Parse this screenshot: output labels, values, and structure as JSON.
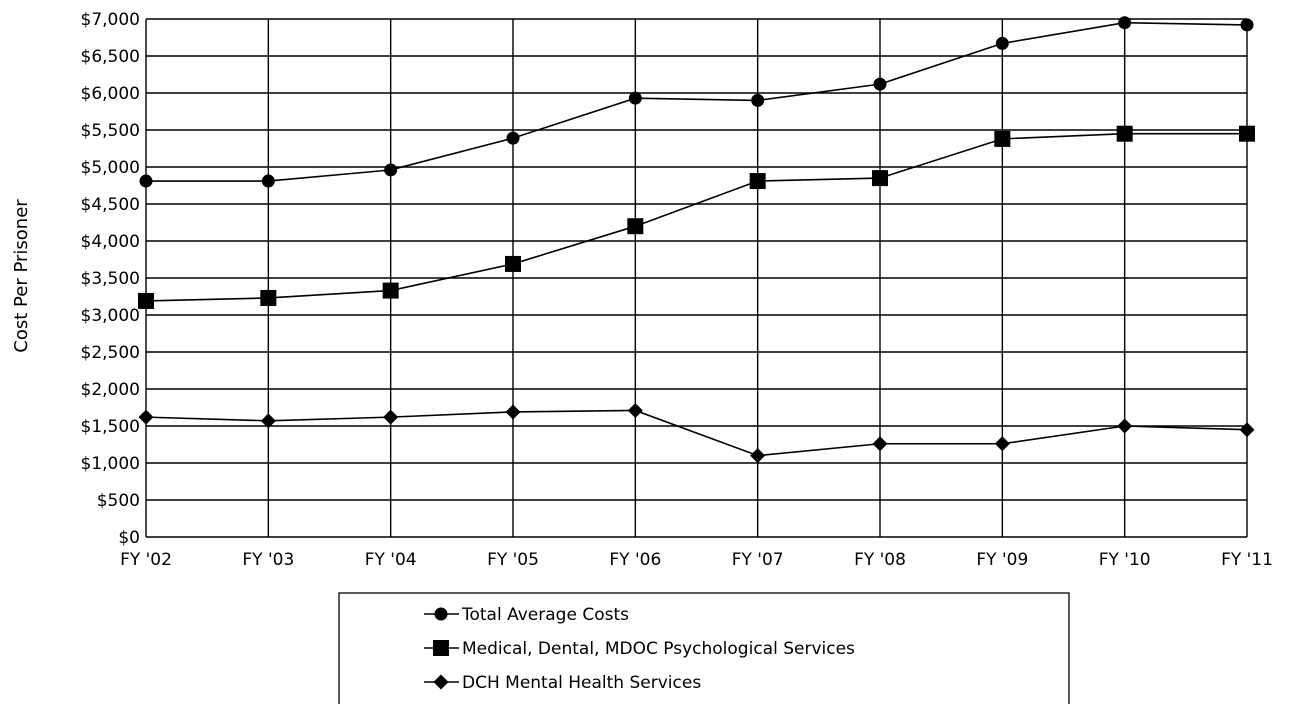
{
  "chart_data": {
    "type": "line",
    "title": "",
    "xlabel": "",
    "ylabel": "Cost Per Prisoner",
    "categories": [
      "FY '02",
      "FY '03",
      "FY '04",
      "FY '05",
      "FY '06",
      "FY '07",
      "FY '08",
      "FY '09",
      "FY '10",
      "FY '11"
    ],
    "ylim": [
      0,
      7000
    ],
    "yticks": [
      0,
      500,
      1000,
      1500,
      2000,
      2500,
      3000,
      3500,
      4000,
      4500,
      5000,
      5500,
      6000,
      6500,
      7000
    ],
    "ytick_labels": [
      "$0",
      "$500",
      "$1,000",
      "$1,500",
      "$2,000",
      "$2,500",
      "$3,000",
      "$3,500",
      "$4,000",
      "$4,500",
      "$5,000",
      "$5,500",
      "$6,000",
      "$6,500",
      "$7,000"
    ],
    "grid": true,
    "legend_position": "bottom",
    "series": [
      {
        "name": "Total Average Costs",
        "marker": "circle",
        "color": "#000000",
        "values": [
          4810,
          4810,
          4960,
          5390,
          5930,
          5900,
          6120,
          6670,
          6950,
          6920
        ]
      },
      {
        "name": "Medical, Dental, MDOC Psychological Services",
        "marker": "square",
        "color": "#000000",
        "values": [
          3190,
          3230,
          3330,
          3690,
          4200,
          4810,
          4850,
          5380,
          5450,
          5450
        ]
      },
      {
        "name": "DCH Mental Health Services",
        "marker": "diamond",
        "color": "#000000",
        "values": [
          1620,
          1570,
          1620,
          1690,
          1710,
          1100,
          1260,
          1260,
          1500,
          1450
        ]
      }
    ]
  }
}
